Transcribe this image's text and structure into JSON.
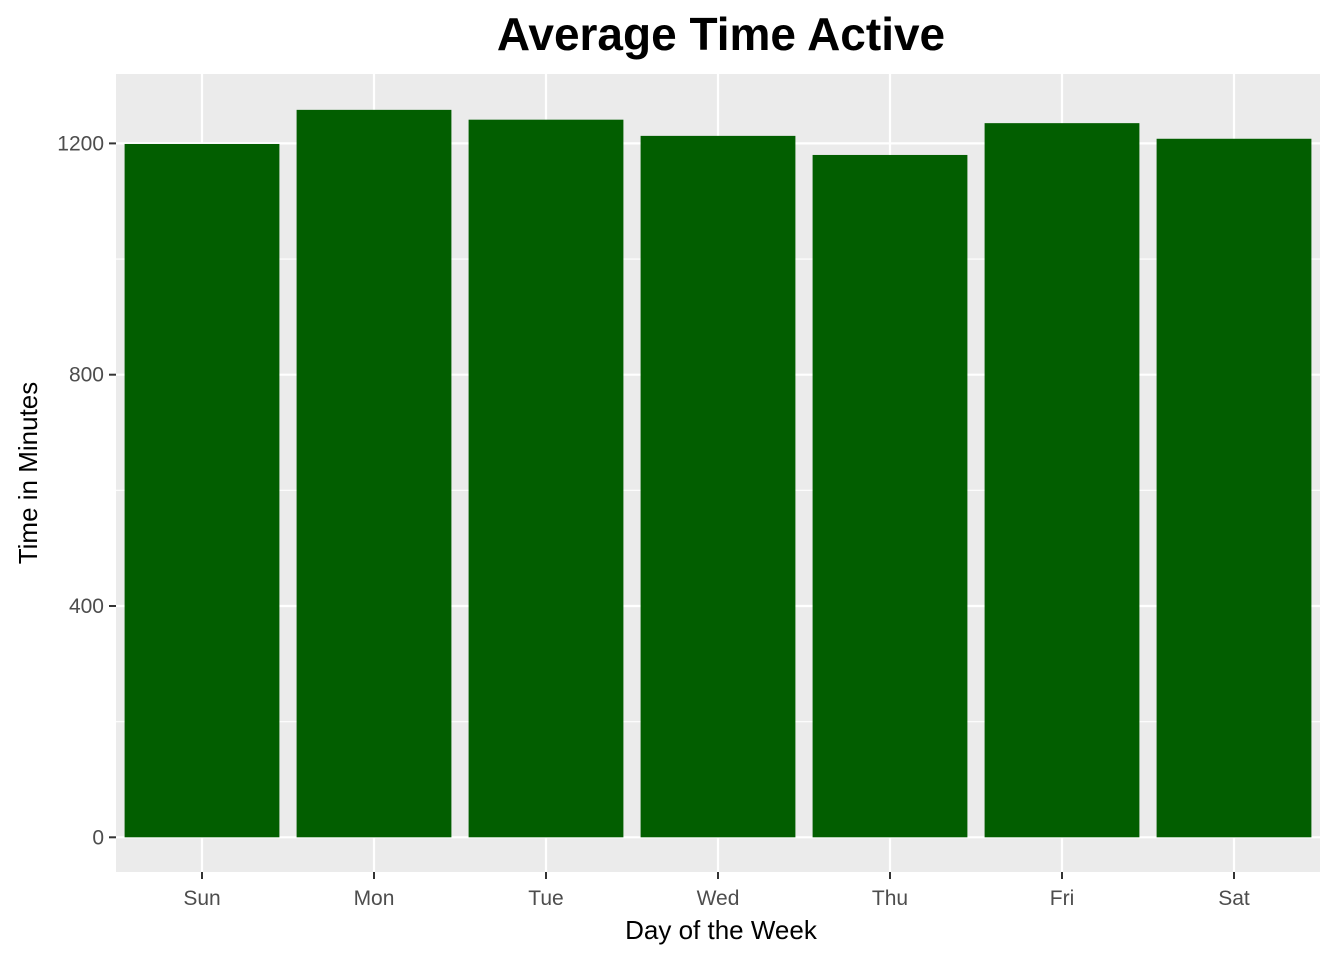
{
  "chart_data": {
    "type": "bar",
    "title": "Average Time Active",
    "xlabel": "Day of the Week",
    "ylabel": "Time in Minutes",
    "categories": [
      "Sun",
      "Mon",
      "Tue",
      "Wed",
      "Thu",
      "Fri",
      "Sat"
    ],
    "values": [
      1199,
      1258,
      1241,
      1213,
      1180,
      1235,
      1208
    ],
    "ylim": [
      -60,
      1320
    ],
    "yticks": [
      0,
      400,
      800,
      1200
    ],
    "grid": true,
    "bar_color": "#025e00",
    "panel_color": "#ebebeb",
    "grid_color": "#ffffff",
    "legend": "none"
  }
}
